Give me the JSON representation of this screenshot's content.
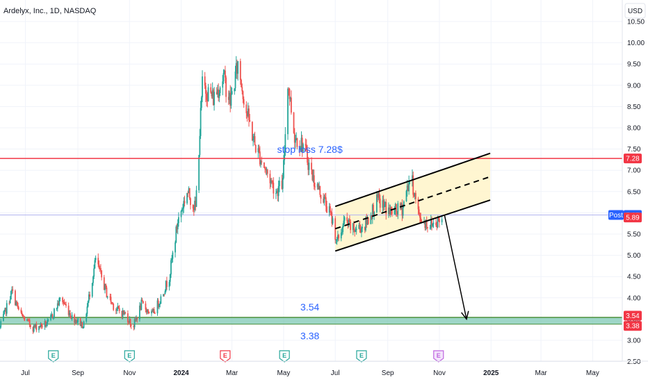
{
  "header": {
    "title": "Ardelyx, Inc., 1D, NASDAQ",
    "currency_button": "USD"
  },
  "colors": {
    "up": "#26a69a",
    "down": "#ef5350",
    "stop_line": "#f23645",
    "support_zone": "#7ec8b4",
    "channel_fill": "#fff5c9",
    "text_blue": "#2962ff",
    "post_badge": "#2962ff",
    "ebadge_green": "#26a69a",
    "ebadge_red": "#f23645",
    "ebadge_purple": "#c066e0"
  },
  "chart_data": {
    "type": "candlestick",
    "symbol": "Ardelyx, Inc.",
    "interval": "1D",
    "exchange": "NASDAQ",
    "currency": "USD",
    "x_range": [
      "2023-06-01",
      "2025-06-05"
    ],
    "ylim": [
      2.5,
      10.5
    ],
    "y_ticks": [
      {
        "value": 2.5,
        "label": "2.50"
      },
      {
        "value": 3.0,
        "label": "3.00"
      },
      {
        "value": 3.5,
        "label": "3.50"
      },
      {
        "value": 4.0,
        "label": "4.00"
      },
      {
        "value": 4.5,
        "label": "4.50"
      },
      {
        "value": 5.0,
        "label": "5.00"
      },
      {
        "value": 5.5,
        "label": "5.50"
      },
      {
        "value": 6.0,
        "label": "6.00"
      },
      {
        "value": 6.5,
        "label": "6.50"
      },
      {
        "value": 7.0,
        "label": "7.00"
      },
      {
        "value": 7.5,
        "label": "7.50"
      },
      {
        "value": 8.0,
        "label": "8.00"
      },
      {
        "value": 8.5,
        "label": "8.50"
      },
      {
        "value": 9.0,
        "label": "9.00"
      },
      {
        "value": 9.5,
        "label": "9.50"
      },
      {
        "value": 10.0,
        "label": "10.00"
      },
      {
        "value": 10.5,
        "label": "10.50"
      }
    ],
    "x_ticks": [
      {
        "date": "2023-07-01",
        "label": "Jul",
        "bold": false
      },
      {
        "date": "2023-09-01",
        "label": "Sep",
        "bold": false
      },
      {
        "date": "2023-11-01",
        "label": "Nov",
        "bold": false
      },
      {
        "date": "2024-01-01",
        "label": "2024",
        "bold": true
      },
      {
        "date": "2024-03-01",
        "label": "Mar",
        "bold": false
      },
      {
        "date": "2024-05-01",
        "label": "May",
        "bold": false
      },
      {
        "date": "2024-07-01",
        "label": "Jul",
        "bold": false
      },
      {
        "date": "2024-09-01",
        "label": "Sep",
        "bold": false
      },
      {
        "date": "2024-11-01",
        "label": "Nov",
        "bold": false
      },
      {
        "date": "2025-01-01",
        "label": "2025",
        "bold": true
      },
      {
        "date": "2025-03-01",
        "label": "Mar",
        "bold": false
      },
      {
        "date": "2025-05-01",
        "label": "May",
        "bold": false
      }
    ],
    "price_path": [
      [
        "2023-06-01",
        3.3
      ],
      [
        "2023-06-15",
        4.15
      ],
      [
        "2023-06-25",
        3.6
      ],
      [
        "2023-07-10",
        3.3
      ],
      [
        "2023-07-28",
        3.4
      ],
      [
        "2023-08-12",
        4.0
      ],
      [
        "2023-08-25",
        3.55
      ],
      [
        "2023-09-08",
        3.35
      ],
      [
        "2023-09-22",
        4.9
      ],
      [
        "2023-10-05",
        4.1
      ],
      [
        "2023-10-15",
        3.75
      ],
      [
        "2023-10-28",
        3.6
      ],
      [
        "2023-11-05",
        3.3
      ],
      [
        "2023-11-15",
        3.85
      ],
      [
        "2023-11-28",
        3.6
      ],
      [
        "2023-12-08",
        4.0
      ],
      [
        "2023-12-18",
        4.5
      ],
      [
        "2023-12-28",
        5.8
      ],
      [
        "2024-01-08",
        6.5
      ],
      [
        "2024-01-18",
        6.1
      ],
      [
        "2024-01-26",
        9.0
      ],
      [
        "2024-02-08",
        8.7
      ],
      [
        "2024-02-20",
        9.2
      ],
      [
        "2024-02-28",
        8.6
      ],
      [
        "2024-03-08",
        9.5
      ],
      [
        "2024-03-18",
        8.4
      ],
      [
        "2024-03-28",
        7.6
      ],
      [
        "2024-04-10",
        7.0
      ],
      [
        "2024-04-22",
        6.5
      ],
      [
        "2024-04-30",
        6.7
      ],
      [
        "2024-05-06",
        9.1
      ],
      [
        "2024-05-14",
        7.8
      ],
      [
        "2024-05-24",
        7.6
      ],
      [
        "2024-06-05",
        6.8
      ],
      [
        "2024-06-18",
        6.3
      ],
      [
        "2024-06-28",
        5.8
      ],
      [
        "2024-07-03",
        5.3
      ],
      [
        "2024-07-12",
        5.8
      ],
      [
        "2024-07-22",
        5.6
      ],
      [
        "2024-08-05",
        5.7
      ],
      [
        "2024-08-20",
        6.3
      ],
      [
        "2024-09-05",
        6.0
      ],
      [
        "2024-09-18",
        6.1
      ],
      [
        "2024-09-28",
        6.9
      ],
      [
        "2024-10-08",
        5.9
      ],
      [
        "2024-10-20",
        5.7
      ],
      [
        "2024-10-28",
        5.8
      ],
      [
        "2024-11-04",
        5.85
      ]
    ],
    "levels": {
      "stop_loss": {
        "value": 7.28,
        "label": "stop loss 7.28$",
        "badge": "7.28"
      },
      "support_top": {
        "value": 3.54,
        "label": "3.54",
        "badge": "3.54"
      },
      "support_bottom": {
        "value": 3.38,
        "label": "3.38",
        "badge": "3.38"
      },
      "post_price": {
        "value": 5.95,
        "badge_title": "Post",
        "badge": "5.95"
      },
      "last_price": {
        "value": 5.89,
        "badge": "5.89"
      }
    },
    "channel": {
      "start": "2024-07-01",
      "end": "2024-12-31",
      "lower_start": 5.1,
      "lower_end": 6.3,
      "upper_start": 6.15,
      "upper_end": 7.4
    },
    "arrow": {
      "from": [
        "2024-11-07",
        5.95
      ],
      "to": [
        "2024-12-03",
        3.5
      ]
    },
    "earnings_markers": [
      {
        "date": "2023-08-03",
        "label": "E",
        "style": "green"
      },
      {
        "date": "2023-11-01",
        "label": "E",
        "style": "green"
      },
      {
        "date": "2024-02-22",
        "label": "E",
        "style": "red"
      },
      {
        "date": "2024-05-02",
        "label": "E",
        "style": "green"
      },
      {
        "date": "2024-08-01",
        "label": "E",
        "style": "green"
      },
      {
        "date": "2024-10-31",
        "label": "E",
        "style": "purple"
      }
    ]
  }
}
